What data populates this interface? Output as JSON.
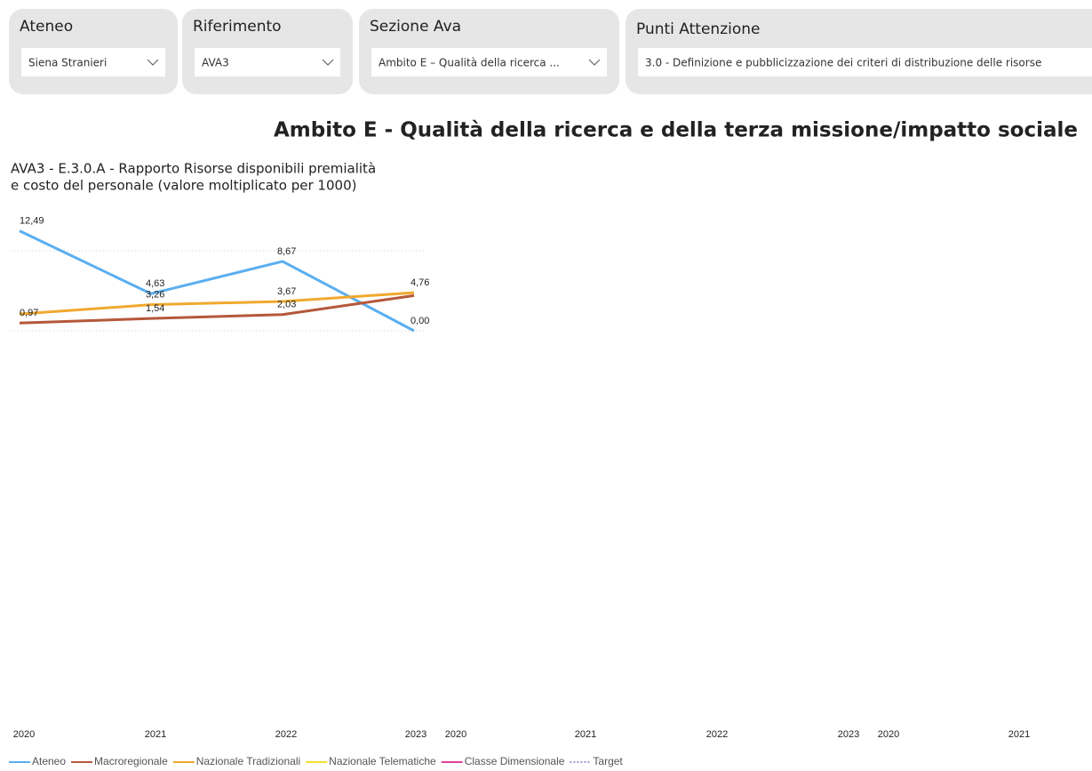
{
  "filters": [
    {
      "label": "Ateneo",
      "value": "Siena Stranieri"
    },
    {
      "label": "Riferimento",
      "value": "AVA3"
    },
    {
      "label": "Sezione Ava",
      "value": "Ambito E – Qualità della ricerca ..."
    },
    {
      "label": "Punti Attenzione",
      "value": "3.0 - Definizione e pubblicizzazione dei criteri di distribuzione delle risorse"
    }
  ],
  "page_title": "Ambito E - Qualità della ricerca e della terza missione/impatto sociale",
  "chart_data": {
    "type": "line",
    "title": [
      "AVA3 - E.3.0.A - Rapporto Risorse disponibili premialità",
      "e costo del personale (valore moltiplicato per 1000)"
    ],
    "categories": [
      "2020",
      "2021",
      "2022",
      "2023"
    ],
    "extra_x_labels": [
      "2020",
      "2021",
      "2022",
      "2023",
      "2020",
      "2021"
    ],
    "ylim": [
      0,
      13.5
    ],
    "yticks": [
      0,
      10
    ],
    "grid": true,
    "series": [
      {
        "name": "Ateneo",
        "color": "#5aaef0",
        "values": [
          12.49,
          4.63,
          8.67,
          0.0
        ],
        "value_labels": [
          "12,49",
          "4,63",
          "8,67",
          "0,00"
        ]
      },
      {
        "name": "Macroregionale",
        "color": "#b5583a",
        "values": [
          0.97,
          1.54,
          2.03,
          4.4
        ],
        "value_labels": [
          "0,97",
          "1,54",
          "2,03",
          null
        ]
      },
      {
        "name": "Nazionale Tradizionali",
        "color": "#f0a92e",
        "values": [
          2.1,
          3.26,
          3.67,
          4.76
        ],
        "value_labels": [
          null,
          "3,26",
          "3,67",
          "4,76"
        ]
      },
      {
        "name": "Nazionale Telematiche",
        "color": "#f2e22c",
        "values": [
          null,
          null,
          null,
          null
        ]
      },
      {
        "name": "Classe Dimensionale",
        "color": "#e0409a",
        "values": [
          null,
          null,
          null,
          null
        ]
      },
      {
        "name": "Target",
        "color": "#9a9ad0",
        "dashed": true,
        "values": [
          null,
          null,
          null,
          null
        ]
      }
    ]
  }
}
